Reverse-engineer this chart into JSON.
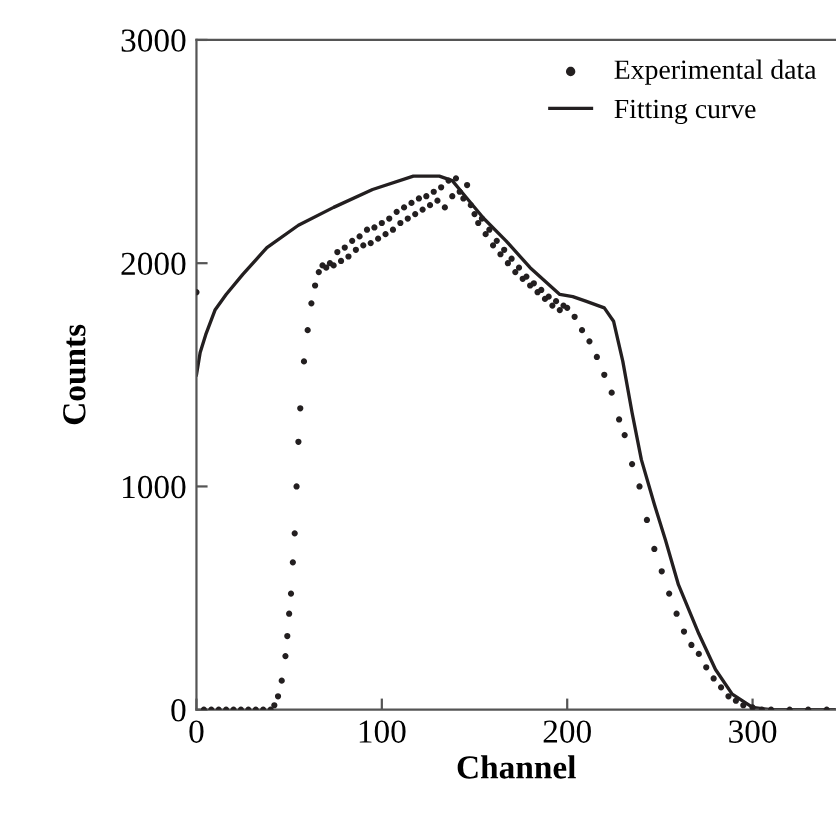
{
  "chart_data": {
    "type": "scatter",
    "xlabel": "Channel",
    "ylabel": "Counts",
    "xlim": [
      0,
      345
    ],
    "ylim": [
      0,
      3000
    ],
    "xticks": [
      0,
      100,
      200,
      300
    ],
    "yticks": [
      0,
      1000,
      2000,
      3000
    ],
    "grid": false,
    "legend": "top right",
    "series": [
      {
        "name": "Experimental data",
        "marker": "circle",
        "color": "#231f20",
        "x": [
          0,
          4,
          8,
          12,
          16,
          20,
          24,
          28,
          32,
          36,
          40,
          42,
          44,
          46,
          48,
          49,
          50,
          51,
          52,
          53,
          54,
          55,
          56,
          58,
          60,
          62,
          64,
          66,
          68,
          70,
          72,
          74,
          76,
          78,
          80,
          82,
          84,
          86,
          88,
          90,
          92,
          94,
          96,
          98,
          100,
          102,
          104,
          106,
          108,
          110,
          112,
          114,
          116,
          118,
          120,
          122,
          124,
          126,
          128,
          130,
          132,
          134,
          136,
          138,
          140,
          142,
          144,
          146,
          148,
          150,
          152,
          154,
          156,
          158,
          160,
          162,
          164,
          166,
          168,
          170,
          172,
          174,
          176,
          178,
          180,
          182,
          184,
          186,
          188,
          190,
          192,
          194,
          196,
          198,
          200,
          204,
          208,
          212,
          216,
          220,
          224,
          228,
          231,
          235,
          239,
          243,
          247,
          251,
          255,
          259,
          263,
          267,
          271,
          275,
          279,
          283,
          287,
          291,
          295,
          300,
          305,
          310,
          320,
          330,
          340
        ],
        "values": [
          1870,
          0,
          0,
          0,
          0,
          0,
          0,
          0,
          0,
          0,
          0,
          20,
          60,
          130,
          240,
          330,
          430,
          520,
          660,
          790,
          1000,
          1200,
          1350,
          1560,
          1700,
          1820,
          1900,
          1960,
          1990,
          1980,
          2000,
          1990,
          2050,
          2010,
          2070,
          2030,
          2100,
          2060,
          2120,
          2080,
          2150,
          2090,
          2160,
          2110,
          2180,
          2130,
          2200,
          2150,
          2230,
          2180,
          2250,
          2200,
          2270,
          2220,
          2290,
          2240,
          2300,
          2260,
          2320,
          2280,
          2340,
          2250,
          2370,
          2300,
          2380,
          2320,
          2290,
          2350,
          2260,
          2220,
          2180,
          2200,
          2130,
          2150,
          2080,
          2100,
          2040,
          2060,
          2000,
          2020,
          1960,
          1980,
          1930,
          1940,
          1900,
          1910,
          1870,
          1880,
          1840,
          1850,
          1810,
          1830,
          1790,
          1810,
          1800,
          1760,
          1700,
          1650,
          1580,
          1500,
          1420,
          1300,
          1230,
          1100,
          1000,
          850,
          720,
          620,
          520,
          430,
          350,
          290,
          250,
          190,
          140,
          100,
          60,
          40,
          20,
          10,
          0,
          0,
          0,
          0,
          0
        ]
      },
      {
        "name": "Fitting curve",
        "type": "line",
        "marker": "none",
        "line_style": "solid",
        "color": "#231f20",
        "x": [
          0,
          2,
          5,
          10,
          16,
          25,
          38,
          55,
          74,
          95,
          117,
          131,
          138,
          145,
          155,
          167,
          180,
          196,
          203,
          210,
          220,
          225,
          230,
          235,
          240,
          247,
          253,
          260,
          271,
          280,
          289,
          300,
          310,
          344
        ],
        "values": [
          1500,
          1600,
          1680,
          1790,
          1860,
          1950,
          2070,
          2170,
          2250,
          2330,
          2390,
          2390,
          2370,
          2300,
          2200,
          2100,
          1980,
          1860,
          1850,
          1830,
          1800,
          1740,
          1560,
          1330,
          1120,
          920,
          760,
          560,
          340,
          180,
          70,
          10,
          0,
          0
        ]
      }
    ]
  }
}
